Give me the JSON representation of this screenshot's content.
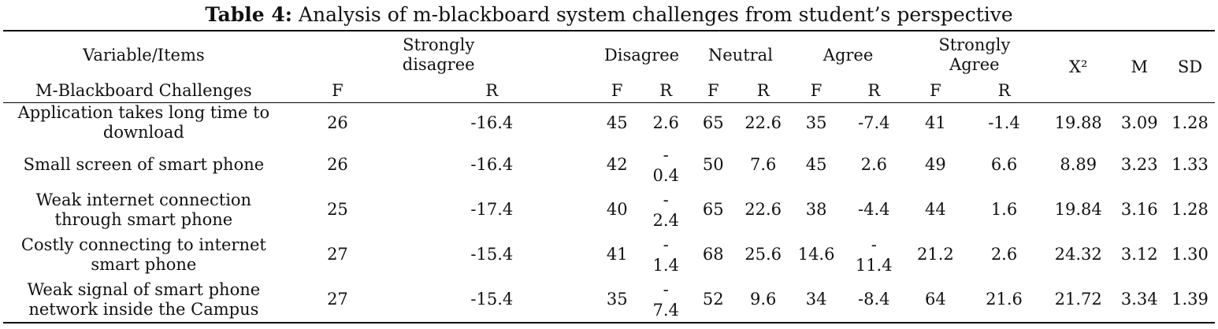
{
  "caption": {
    "label": "Table 4:",
    "text": " Analysis of m-blackboard system challenges from student’s perspective"
  },
  "header": {
    "variable_items": "Variable/Items",
    "strongly_disagree": "Strongly disagree",
    "disagree": "Disagree",
    "neutral": "Neutral",
    "agree": "Agree",
    "strongly_agree": "Strongly Agree",
    "chi_square": "X²",
    "mean": "M",
    "sd": "SD",
    "section": "M-Blackboard Challenges",
    "f": "F",
    "r": "R"
  },
  "rows": [
    {
      "item": "Application takes long time to download",
      "sd_f": "26",
      "sd_r": "-16.4",
      "d_f": "45",
      "d_r": "2.6",
      "n_f": "65",
      "n_r": "22.6",
      "a_f": "35",
      "a_r": "-7.4",
      "sa_f": "41",
      "sa_r": "-1.4",
      "x2": "19.88",
      "m": "3.09",
      "sd": "1.28"
    },
    {
      "item": "Small screen of smart phone",
      "sd_f": "26",
      "sd_r": "-16.4",
      "d_f": "42",
      "d_r_sign": "-",
      "d_r": "0.4",
      "n_f": "50",
      "n_r": "7.6",
      "a_f": "45",
      "a_r": "2.6",
      "sa_f": "49",
      "sa_r": "6.6",
      "x2": "8.89",
      "m": "3.23",
      "sd": "1.33"
    },
    {
      "item": "Weak internet connection through smart phone",
      "sd_f": "25",
      "sd_r": "-17.4",
      "d_f": "40",
      "d_r_sign": "-",
      "d_r": "2.4",
      "n_f": "65",
      "n_r": "22.6",
      "a_f": "38",
      "a_r": "-4.4",
      "sa_f": "44",
      "sa_r": "1.6",
      "x2": "19.84",
      "m": "3.16",
      "sd": "1.28"
    },
    {
      "item": "Costly connecting to internet smart phone",
      "sd_f": "27",
      "sd_r": "-15.4",
      "d_f": "41",
      "d_r_sign": "-",
      "d_r": "1.4",
      "n_f": "68",
      "n_r": "25.6",
      "a_f": "14.6",
      "a_r_sign": "-",
      "a_r": "11.4",
      "sa_f": "21.2",
      "sa_r": "2.6",
      "x2": "24.32",
      "m": "3.12",
      "sd": "1.30"
    },
    {
      "item": "Weak signal of smart phone network inside the Campus",
      "sd_f": "27",
      "sd_r": "-15.4",
      "d_f": "35",
      "d_r_sign": "-",
      "d_r": "7.4",
      "n_f": "52",
      "n_r": "9.6",
      "a_f": "34",
      "a_r": "-8.4",
      "sa_f": "64",
      "sa_r": "21.6",
      "x2": "21.72",
      "m": "3.34",
      "sd": "1.39"
    }
  ]
}
